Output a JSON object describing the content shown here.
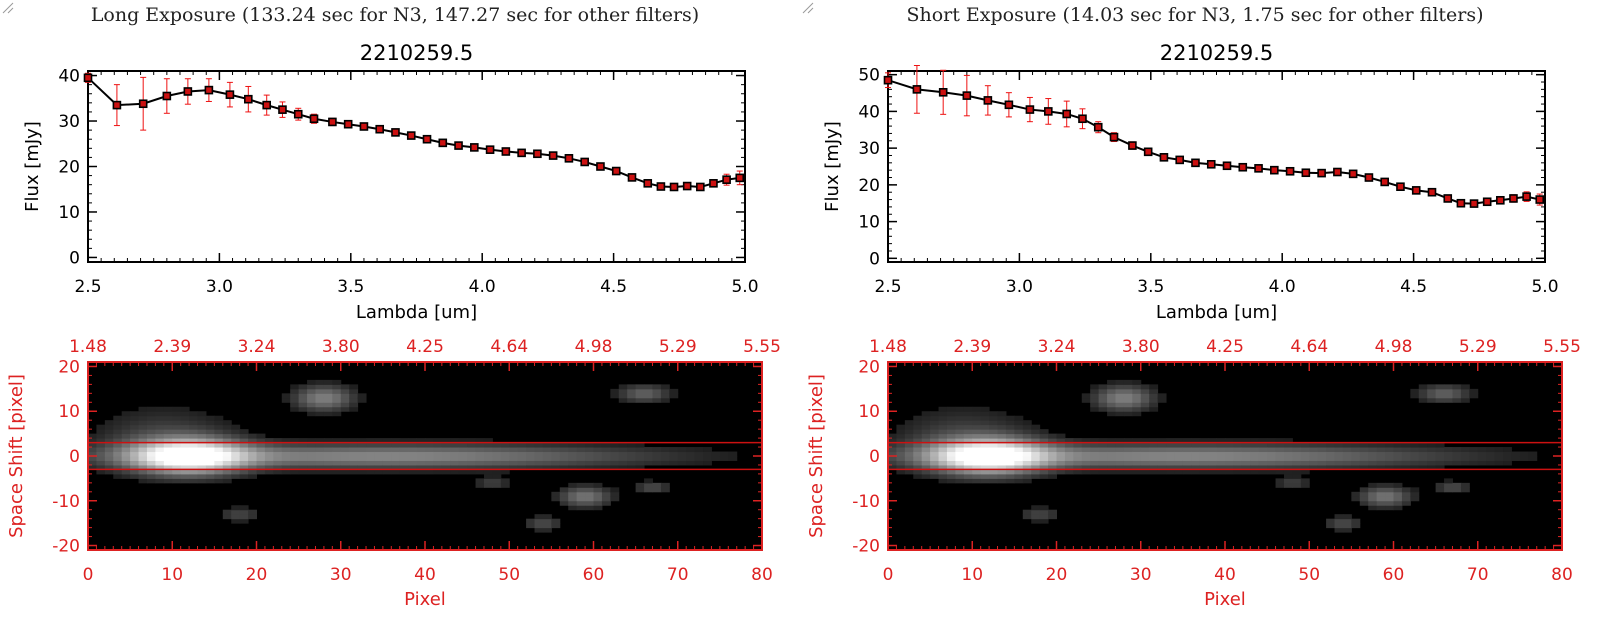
{
  "colors": {
    "axis_red": "#dd2222",
    "errorbar_red": "#ee1111",
    "marker_red": "#cc1111",
    "line": "#000000"
  },
  "panels": [
    {
      "exposure_title": "Long Exposure (133.24 sec for N3, 147.27 sec for other filters)",
      "chart_data": [
        {
          "type": "line",
          "title": "2210259.5",
          "xlabel": "Lambda [um]",
          "ylabel": "Flux [mJy]",
          "xlim": [
            2.5,
            5.0
          ],
          "ylim": [
            -1,
            41
          ],
          "xticks": [
            "2.5",
            "3.0",
            "3.5",
            "4.0",
            "4.5",
            "5.0"
          ],
          "yticks": [
            0,
            10,
            20,
            30,
            40
          ],
          "series": [
            {
              "x": [
                2.5,
                2.61,
                2.71,
                2.8,
                2.88,
                2.96,
                3.04,
                3.11,
                3.18,
                3.24,
                3.3,
                3.36,
                3.43,
                3.49,
                3.55,
                3.61,
                3.67,
                3.73,
                3.79,
                3.85,
                3.91,
                3.97,
                4.03,
                4.09,
                4.15,
                4.21,
                4.27,
                4.33,
                4.39,
                4.45,
                4.51,
                4.57,
                4.63,
                4.68,
                4.73,
                4.78,
                4.83,
                4.88,
                4.93,
                4.98
              ],
              "y": [
                39.5,
                33.5,
                33.8,
                35.5,
                36.5,
                36.8,
                35.8,
                34.8,
                33.5,
                32.5,
                31.5,
                30.5,
                29.8,
                29.3,
                28.8,
                28.2,
                27.5,
                26.8,
                26.0,
                25.2,
                24.6,
                24.2,
                23.7,
                23.3,
                23.0,
                22.8,
                22.4,
                21.8,
                21.0,
                20.0,
                19.0,
                17.6,
                16.3,
                15.6,
                15.5,
                15.7,
                15.5,
                16.3,
                17.1,
                17.5
              ],
              "err": [
                1.0,
                4.5,
                5.8,
                3.8,
                2.8,
                2.5,
                2.7,
                2.8,
                2.2,
                1.7,
                1.3,
                1.0,
                0.8,
                0.6,
                0.6,
                0.6,
                0.6,
                0.6,
                0.6,
                0.6,
                0.6,
                0.6,
                0.6,
                0.6,
                0.6,
                0.6,
                0.6,
                0.6,
                0.6,
                0.6,
                0.6,
                0.6,
                0.6,
                0.6,
                0.6,
                0.6,
                0.6,
                0.8,
                1.2,
                1.5
              ]
            }
          ]
        },
        {
          "type": "heatmap",
          "xlabel": "Pixel",
          "ylabel": "Space Shift [pixel]",
          "xlim": [
            0,
            80
          ],
          "ylim": [
            -21,
            21
          ],
          "xticks": [
            0,
            10,
            20,
            30,
            40,
            50,
            60,
            70,
            80
          ],
          "yticks": [
            -20,
            -10,
            0,
            10,
            20
          ],
          "top_ticks": [
            "1.48",
            "2.39",
            "3.24",
            "3.80",
            "4.25",
            "4.64",
            "4.98",
            "5.29",
            "5.55"
          ],
          "aperture_lines": [
            3,
            -3
          ],
          "blobs": [
            {
              "x": 12,
              "y": 0,
              "sx": 4.5,
              "sy": 2.6,
              "amp": 1.0
            },
            {
              "x": 35,
              "y": 0,
              "sx": 22,
              "sy": 1.9,
              "amp": 0.45
            },
            {
              "x": 9,
              "y": 4,
              "sx": 6,
              "sy": 5,
              "amp": 0.18
            },
            {
              "x": 28,
              "y": 13,
              "sx": 2.5,
              "sy": 2,
              "amp": 0.42
            },
            {
              "x": 66,
              "y": 14,
              "sx": 2.2,
              "sy": 1.4,
              "amp": 0.3
            },
            {
              "x": 59,
              "y": -9,
              "sx": 2.2,
              "sy": 1.6,
              "amp": 0.38
            },
            {
              "x": 54,
              "y": -15,
              "sx": 1.6,
              "sy": 1.2,
              "amp": 0.22
            },
            {
              "x": 18,
              "y": -13,
              "sx": 1.8,
              "sy": 1.1,
              "amp": 0.2
            },
            {
              "x": 67,
              "y": -7,
              "sx": 1.5,
              "sy": 1,
              "amp": 0.22
            },
            {
              "x": 48,
              "y": -6,
              "sx": 1.5,
              "sy": 1,
              "amp": 0.18
            }
          ]
        }
      ]
    },
    {
      "exposure_title": "Short Exposure (14.03 sec for N3, 1.75 sec for other filters)",
      "chart_data": [
        {
          "type": "line",
          "title": "2210259.5",
          "xlabel": "Lambda [um]",
          "ylabel": "Flux [mJy]",
          "xlim": [
            2.5,
            5.0
          ],
          "ylim": [
            -1,
            51
          ],
          "xticks": [
            "2.5",
            "3.0",
            "3.5",
            "4.0",
            "4.5",
            "5.0"
          ],
          "yticks": [
            0,
            10,
            20,
            30,
            40,
            50
          ],
          "series": [
            {
              "x": [
                2.5,
                2.61,
                2.71,
                2.8,
                2.88,
                2.96,
                3.04,
                3.11,
                3.18,
                3.24,
                3.3,
                3.36,
                3.43,
                3.49,
                3.55,
                3.61,
                3.67,
                3.73,
                3.79,
                3.85,
                3.91,
                3.97,
                4.03,
                4.09,
                4.15,
                4.21,
                4.27,
                4.33,
                4.39,
                4.45,
                4.51,
                4.57,
                4.63,
                4.68,
                4.73,
                4.78,
                4.83,
                4.88,
                4.93,
                4.98
              ],
              "y": [
                48.5,
                46.0,
                45.2,
                44.3,
                43.0,
                41.8,
                40.5,
                40.0,
                39.3,
                38.0,
                35.7,
                33.0,
                30.7,
                29.0,
                27.5,
                26.8,
                26.0,
                25.6,
                25.2,
                24.8,
                24.5,
                24.0,
                23.7,
                23.3,
                23.2,
                23.5,
                23.0,
                22.0,
                20.8,
                19.5,
                18.5,
                18.0,
                16.3,
                15.0,
                14.9,
                15.4,
                15.8,
                16.3,
                16.8,
                16.0
              ],
              "err": [
                2.0,
                6.5,
                6.0,
                5.5,
                4.0,
                3.3,
                3.3,
                3.5,
                3.5,
                2.7,
                1.5,
                1.2,
                1.0,
                0.8,
                0.7,
                0.7,
                0.7,
                0.7,
                0.7,
                0.7,
                0.7,
                0.7,
                0.7,
                0.7,
                0.7,
                0.7,
                0.7,
                0.7,
                0.7,
                0.7,
                0.7,
                0.7,
                0.7,
                0.7,
                0.7,
                0.7,
                0.8,
                1.0,
                1.3,
                1.5
              ]
            }
          ]
        },
        {
          "type": "heatmap",
          "xlabel": "Pixel",
          "ylabel": "Space Shift [pixel]",
          "xlim": [
            0,
            80
          ],
          "ylim": [
            -21,
            21
          ],
          "xticks": [
            0,
            10,
            20,
            30,
            40,
            50,
            60,
            70,
            80
          ],
          "yticks": [
            -20,
            -10,
            0,
            10,
            20
          ],
          "top_ticks": [
            "1.48",
            "2.39",
            "3.24",
            "3.80",
            "4.25",
            "4.64",
            "4.98",
            "5.29",
            "5.55"
          ],
          "aperture_lines": [
            3,
            -3
          ],
          "blobs": [
            {
              "x": 12,
              "y": 0,
              "sx": 4.5,
              "sy": 2.6,
              "amp": 1.0
            },
            {
              "x": 35,
              "y": 0,
              "sx": 22,
              "sy": 1.9,
              "amp": 0.45
            },
            {
              "x": 9,
              "y": 4,
              "sx": 6,
              "sy": 5,
              "amp": 0.18
            },
            {
              "x": 28,
              "y": 13,
              "sx": 2.5,
              "sy": 2,
              "amp": 0.42
            },
            {
              "x": 66,
              "y": 14,
              "sx": 2.2,
              "sy": 1.4,
              "amp": 0.3
            },
            {
              "x": 59,
              "y": -9,
              "sx": 2.2,
              "sy": 1.6,
              "amp": 0.38
            },
            {
              "x": 54,
              "y": -15,
              "sx": 1.6,
              "sy": 1.2,
              "amp": 0.22
            },
            {
              "x": 18,
              "y": -13,
              "sx": 1.8,
              "sy": 1.1,
              "amp": 0.2
            },
            {
              "x": 67,
              "y": -7,
              "sx": 1.5,
              "sy": 1,
              "amp": 0.22
            },
            {
              "x": 48,
              "y": -6,
              "sx": 1.5,
              "sy": 1,
              "amp": 0.18
            }
          ]
        }
      ]
    }
  ]
}
